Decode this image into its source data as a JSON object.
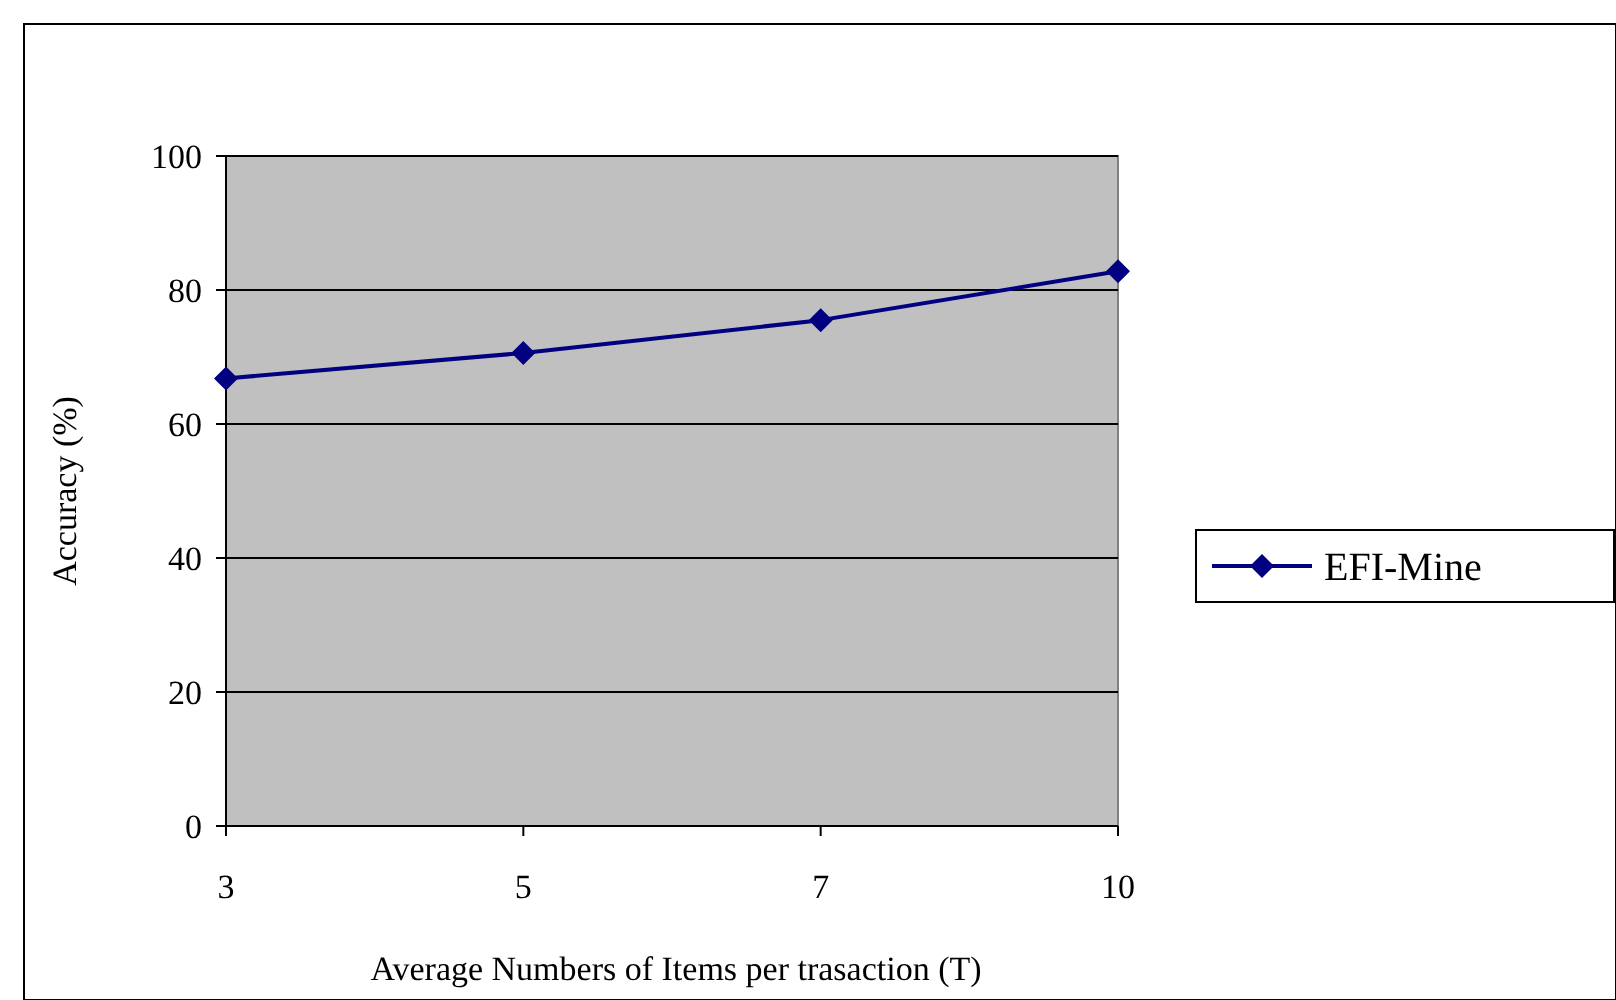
{
  "chart_data": {
    "type": "line",
    "xlabel": "Average Numbers of Items per trasaction (T)",
    "ylabel": "Accuracy (%)",
    "categories": [
      "3",
      "5",
      "7",
      "10"
    ],
    "series": [
      {
        "name": "EFI-Mine",
        "color": "#000080",
        "values": [
          66.8,
          70.6,
          75.5,
          82.8
        ]
      }
    ],
    "ylim": [
      0,
      100
    ],
    "yticks": [
      0,
      20,
      40,
      60,
      80,
      100
    ],
    "grid": "y",
    "legend": "right",
    "marker": "diamond",
    "line_style": "solid"
  }
}
